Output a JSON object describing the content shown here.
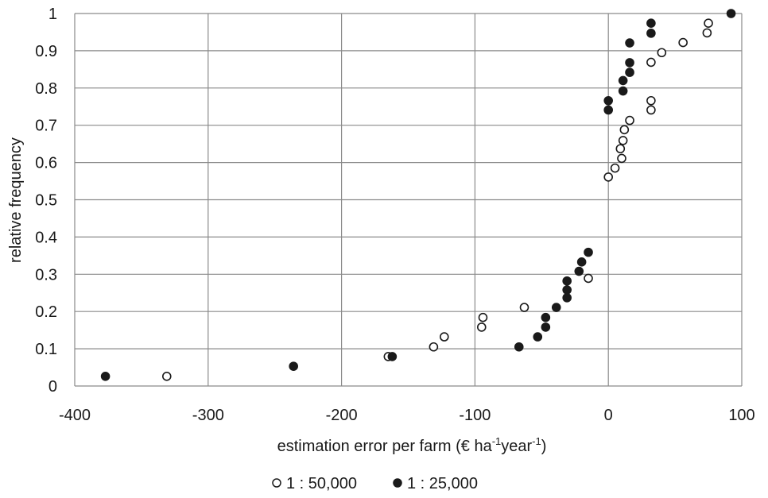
{
  "chart_data": {
    "type": "scatter",
    "title": "",
    "xlabel": "estimation error per farm (€ ha",
    "xlabel_parts": [
      "estimation error per farm (€ ha",
      "-1",
      "year",
      "-1",
      ")"
    ],
    "ylabel": "relative frequency",
    "xlim": [
      -400,
      100
    ],
    "ylim": [
      0,
      1
    ],
    "xticks": [
      -400,
      -300,
      -200,
      -100,
      0,
      100
    ],
    "yticks": [
      0,
      0.1,
      0.2,
      0.3,
      0.4,
      0.5,
      0.6,
      0.7,
      0.8,
      0.9,
      1
    ],
    "grid": true,
    "legend_position": "bottom",
    "series": [
      {
        "name": "1 : 50,000",
        "marker": "open-circle",
        "color": "#1a1a1a",
        "points": [
          [
            -331,
            0.026
          ],
          [
            -165,
            0.079
          ],
          [
            -131,
            0.105
          ],
          [
            -123,
            0.132
          ],
          [
            -95,
            0.158
          ],
          [
            -94,
            0.184
          ],
          [
            -63,
            0.211
          ],
          [
            -15,
            0.289
          ],
          [
            0,
            0.561
          ],
          [
            5,
            0.585
          ],
          [
            10,
            0.611
          ],
          [
            9,
            0.637
          ],
          [
            11,
            0.659
          ],
          [
            12,
            0.688
          ],
          [
            16,
            0.713
          ],
          [
            32,
            0.741
          ],
          [
            32,
            0.766
          ],
          [
            32,
            0.869
          ],
          [
            40,
            0.895
          ],
          [
            56,
            0.922
          ],
          [
            74,
            0.948
          ],
          [
            75,
            0.974
          ]
        ]
      },
      {
        "name": "1 : 25,000",
        "marker": "filled-circle",
        "color": "#1a1a1a",
        "points": [
          [
            -377,
            0.026
          ],
          [
            -236,
            0.053
          ],
          [
            -162,
            0.079
          ],
          [
            -67,
            0.105
          ],
          [
            -53,
            0.132
          ],
          [
            -47,
            0.158
          ],
          [
            -47,
            0.184
          ],
          [
            -39,
            0.211
          ],
          [
            -31,
            0.237
          ],
          [
            -31,
            0.258
          ],
          [
            -31,
            0.282
          ],
          [
            -22,
            0.308
          ],
          [
            -20,
            0.333
          ],
          [
            -15,
            0.359
          ],
          [
            0,
            0.741
          ],
          [
            0,
            0.766
          ],
          [
            11,
            0.792
          ],
          [
            11,
            0.82
          ],
          [
            16,
            0.842
          ],
          [
            16,
            0.868
          ],
          [
            16,
            0.921
          ],
          [
            32,
            0.947
          ],
          [
            32,
            0.974
          ],
          [
            92,
            1.0
          ]
        ]
      }
    ]
  }
}
